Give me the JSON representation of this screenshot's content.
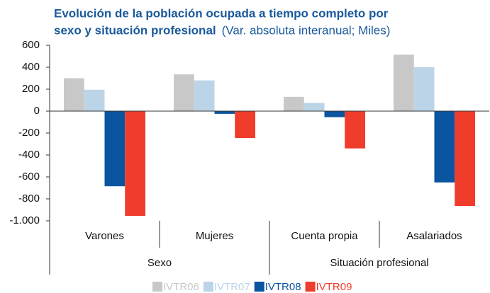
{
  "chart_data": {
    "type": "bar",
    "title": [
      "Evolución de la población ocupada a tiempo completo por",
      "sexo y situación profesional"
    ],
    "subtitle": "(Var. absoluta interanual; Miles)",
    "categories": [
      "Varones",
      "Mujeres",
      "Cuenta propia",
      "Asalariados"
    ],
    "groups": [
      {
        "name": "Sexo",
        "size": 2
      },
      {
        "name": "Situación profesional",
        "size": 2
      }
    ],
    "series": [
      {
        "name": "IVTR06",
        "color": "#c8c8c8",
        "values": [
          300,
          335,
          130,
          515
        ]
      },
      {
        "name": "IVTR07",
        "color": "#bcd4e8",
        "values": [
          195,
          280,
          75,
          400
        ]
      },
      {
        "name": "IVTR08",
        "color": "#0a54a0",
        "values": [
          -685,
          -25,
          -55,
          -650
        ]
      },
      {
        "name": "IVTR09",
        "color": "#f03c2a",
        "values": [
          -955,
          -245,
          -340,
          -865
        ]
      }
    ],
    "ylim": [
      -1000,
      600
    ],
    "yticks": [
      600,
      400,
      200,
      0,
      -200,
      -400,
      -600,
      -800,
      {
        "value": -1000,
        "label": "-1.000"
      }
    ]
  }
}
